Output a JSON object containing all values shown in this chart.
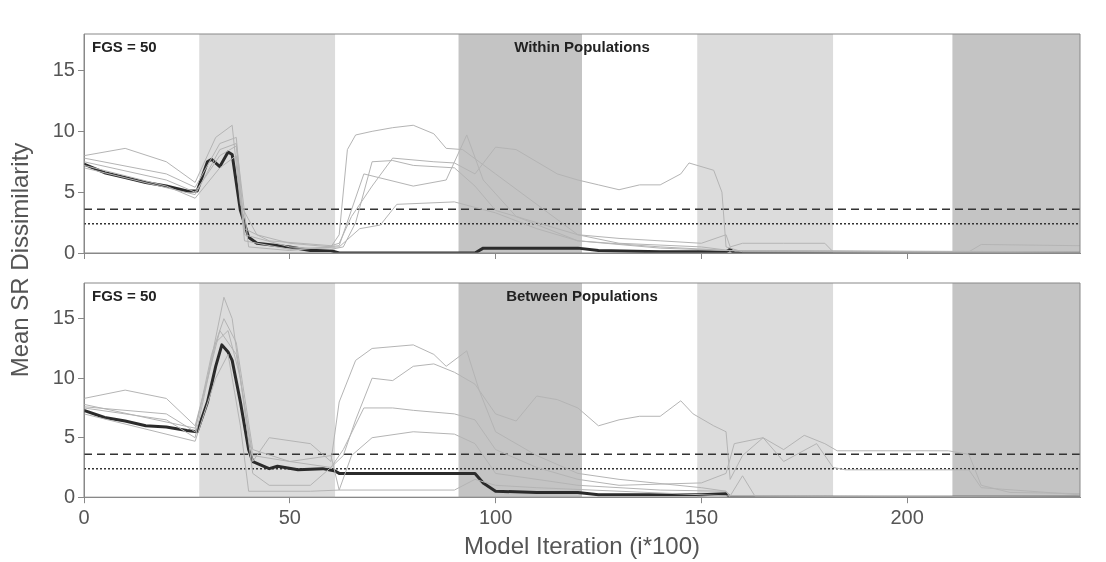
{
  "chart_data": [
    {
      "type": "line",
      "ylabel": "Mean SR Dissimilarity",
      "annotations": [
        "FGS = 50",
        "Within Populations"
      ],
      "xlim": [
        0,
        242
      ],
      "xticks": [
        0,
        50,
        100,
        150,
        200
      ],
      "ylim": [
        0,
        18
      ],
      "yticks": [
        0,
        5,
        10,
        15
      ],
      "tick_labels": "y",
      "grid": false,
      "legend": false,
      "marker": "none",
      "line_style": "solid",
      "bands": [
        {
          "axis": "x",
          "from": 28,
          "to": 61,
          "color": "#dcdcdc"
        },
        {
          "axis": "x",
          "from": 91,
          "to": 121,
          "color": "#c4c4c4"
        },
        {
          "axis": "x",
          "from": 149,
          "to": 182,
          "color": "#dcdcdc"
        },
        {
          "axis": "x",
          "from": 211,
          "to": 242,
          "color": "#c4c4c4"
        }
      ],
      "ref_lines": [
        {
          "axis": "y",
          "value": 3.6,
          "color": "#333333",
          "line_style": "dashed"
        },
        {
          "axis": "y",
          "value": 2.4,
          "color": "#333333",
          "line_style": "dotted"
        }
      ],
      "series": [
        {
          "color": "#b4b4b4",
          "x": [
            0,
            10,
            20,
            27,
            32,
            36,
            38,
            42,
            50,
            60,
            62,
            64,
            66,
            70,
            75,
            80,
            85,
            88,
            92,
            100,
            110,
            120,
            130,
            150,
            157,
            242
          ],
          "values": [
            8.0,
            8.6,
            7.5,
            5.8,
            9.5,
            10.5,
            4,
            1.5,
            0.8,
            0.5,
            1.5,
            8.5,
            9.7,
            10,
            10.3,
            10.5,
            9.8,
            8.6,
            8.5,
            6.5,
            4,
            1.5,
            0.8,
            0.5,
            0.2,
            0.1
          ]
        },
        {
          "color": "#b4b4b4",
          "x": [
            0,
            20,
            27,
            33,
            37,
            39,
            45,
            60,
            62,
            65,
            70,
            75,
            85,
            90,
            95,
            100,
            105,
            110,
            115,
            120,
            125,
            130,
            135,
            140,
            145,
            147,
            153,
            155,
            156,
            160,
            242
          ],
          "values": [
            7.8,
            6.5,
            5.4,
            9,
            9.5,
            2,
            1.0,
            0.6,
            0.8,
            3,
            5.5,
            7.8,
            7.5,
            7.4,
            6.5,
            8.7,
            8.5,
            7.5,
            6.5,
            6.0,
            5.6,
            5.2,
            5.6,
            5.6,
            6.5,
            7.4,
            6.8,
            5.0,
            0.5,
            0.1,
            0
          ]
        },
        {
          "color": "#b4b4b4",
          "x": [
            0,
            20,
            27,
            33,
            37,
            39,
            50,
            60,
            63,
            66,
            70,
            75,
            80,
            90,
            95,
            100,
            110,
            120,
            130,
            140,
            150,
            156,
            157,
            160,
            170,
            180,
            182,
            242
          ],
          "values": [
            7.5,
            6.0,
            5.0,
            8,
            8.8,
            1.5,
            0.5,
            0.3,
            0.5,
            2.5,
            7.5,
            7.6,
            7.2,
            7.0,
            5.5,
            3.5,
            2.5,
            1.5,
            1.2,
            1.0,
            0.8,
            1.5,
            0.5,
            0.8,
            0.8,
            0.8,
            0.1,
            0.1
          ]
        },
        {
          "color": "#b4b4b4",
          "x": [
            0,
            20,
            27,
            33,
            37,
            39,
            50,
            62,
            67,
            72,
            76,
            90,
            100,
            110,
            120,
            140,
            156,
            242
          ],
          "values": [
            7.2,
            5.5,
            4.5,
            7,
            8,
            1,
            0.3,
            0.5,
            2,
            2.3,
            4,
            4.2,
            3.3,
            2,
            1.0,
            0.4,
            0.2,
            0.0
          ]
        },
        {
          "color": "#b4b4b4",
          "x": [
            0,
            27,
            33,
            37,
            40,
            50,
            62,
            68,
            80,
            88,
            93,
            97,
            105,
            120,
            140,
            157,
            215,
            218,
            242
          ],
          "values": [
            7.0,
            4.8,
            8.5,
            9,
            0.5,
            0.2,
            0.6,
            6.5,
            5.5,
            6,
            9.7,
            6,
            3,
            1,
            0.5,
            0.2,
            0.1,
            0.7,
            0.6
          ]
        },
        {
          "color": "#2b2b2b",
          "x": [
            0,
            5,
            10,
            15,
            20,
            25,
            27.5,
            30,
            31,
            33,
            35,
            36,
            38,
            40,
            42,
            50,
            55,
            60,
            62,
            90,
            95,
            97,
            120,
            125,
            140,
            156,
            157,
            158,
            242
          ],
          "values": [
            7.3,
            6.6,
            6.2,
            5.8,
            5.5,
            5.1,
            5.1,
            7.5,
            7.7,
            7.1,
            8.3,
            8.1,
            3.5,
            1.3,
            0.8,
            0.5,
            0.2,
            0.2,
            0.0,
            0.0,
            0.0,
            0.4,
            0.4,
            0.2,
            0.1,
            0.1,
            0.3,
            0.0,
            0.0
          ]
        }
      ]
    },
    {
      "type": "line",
      "xlabel": "Model Iteration (i*100)",
      "annotations": [
        "FGS = 50",
        "Between Populations"
      ],
      "xlim": [
        0,
        242
      ],
      "xticks": [
        0,
        50,
        100,
        150,
        200
      ],
      "ylim": [
        0,
        18
      ],
      "yticks": [
        0,
        5,
        10,
        15
      ],
      "grid": false,
      "legend": false,
      "marker": "none",
      "line_style": "solid",
      "bands": [
        {
          "axis": "x",
          "from": 28,
          "to": 61,
          "color": "#dcdcdc"
        },
        {
          "axis": "x",
          "from": 91,
          "to": 121,
          "color": "#c4c4c4"
        },
        {
          "axis": "x",
          "from": 149,
          "to": 182,
          "color": "#dcdcdc"
        },
        {
          "axis": "x",
          "from": 211,
          "to": 242,
          "color": "#c4c4c4"
        }
      ],
      "ref_lines": [
        {
          "axis": "y",
          "value": 3.6,
          "color": "#333333",
          "line_style": "dashed"
        },
        {
          "axis": "y",
          "value": 2.4,
          "color": "#333333",
          "line_style": "dotted"
        }
      ],
      "series": [
        {
          "color": "#b4b4b4",
          "x": [
            0,
            10,
            20,
            27,
            30,
            34,
            36,
            38,
            41,
            45,
            55,
            60,
            62,
            66,
            70,
            80,
            85,
            88,
            93,
            96,
            100,
            110,
            120,
            130,
            150,
            156,
            157,
            242
          ],
          "values": [
            8.3,
            9.0,
            8.3,
            6,
            10,
            16.8,
            15,
            10,
            3,
            5,
            4.5,
            3,
            8,
            11.5,
            12.5,
            12.8,
            12,
            11,
            12.3,
            9,
            5.5,
            3.5,
            2.0,
            1.5,
            0.8,
            0.5,
            0.0,
            0.0
          ]
        },
        {
          "color": "#b4b4b4",
          "x": [
            0,
            20,
            27,
            31,
            34,
            37,
            41,
            50,
            60,
            63,
            66,
            70,
            75,
            80,
            85,
            90,
            95,
            100,
            105,
            110,
            115,
            120,
            125,
            130,
            135,
            140,
            145,
            148,
            153,
            156,
            157,
            160,
            165,
            170,
            175,
            180,
            183,
            210,
            215,
            218,
            225,
            242
          ],
          "values": [
            7.6,
            7,
            5.5,
            12,
            15,
            13,
            4,
            3,
            2.5,
            3.5,
            6.5,
            10,
            9.8,
            11,
            11.2,
            10.5,
            9.5,
            7,
            6.4,
            8.5,
            8.2,
            7.5,
            6.0,
            6.5,
            6.8,
            6.8,
            8.1,
            7.0,
            6.0,
            5.5,
            1.5,
            3.5,
            5.0,
            4.0,
            5.2,
            4.5,
            3.9,
            3.9,
            3.6,
            1.0,
            0.4,
            0.3
          ]
        },
        {
          "color": "#b4b4b4",
          "x": [
            0,
            20,
            27,
            32,
            35,
            38,
            41,
            45,
            55,
            60,
            63,
            68,
            75,
            80,
            90,
            95,
            100,
            110,
            120,
            130,
            150,
            156,
            158,
            165,
            170,
            178,
            182,
            185,
            210,
            215,
            218,
            242
          ],
          "values": [
            7.5,
            6.5,
            5.0,
            13,
            14,
            10,
            2,
            1,
            1,
            2.5,
            4,
            7.5,
            7.5,
            7.3,
            7.0,
            6.5,
            4,
            2.5,
            1.5,
            1.0,
            1.2,
            2.0,
            4.5,
            5,
            3,
            4.5,
            2.5,
            2.3,
            2.3,
            2.3,
            0.8,
            0.2
          ]
        },
        {
          "color": "#b4b4b4",
          "x": [
            0,
            27,
            32,
            35,
            38,
            40,
            55,
            62,
            65,
            70,
            80,
            90,
            95,
            100,
            120,
            140,
            156,
            157,
            242
          ],
          "values": [
            7.0,
            4.7,
            10,
            12,
            6,
            0.5,
            0.5,
            0.6,
            3.5,
            5,
            5.5,
            5.3,
            4.5,
            2,
            1,
            0.6,
            0.5,
            0.1,
            0
          ]
        },
        {
          "color": "#b4b4b4",
          "x": [
            0,
            27,
            33,
            37,
            41,
            50,
            60,
            62,
            90,
            95,
            100,
            110,
            157,
            160,
            163,
            242
          ],
          "values": [
            7.8,
            5.8,
            14,
            12,
            3.5,
            3,
            3.5,
            0.6,
            0.6,
            1.5,
            1.0,
            0.8,
            0.1,
            1.8,
            0.1,
            0
          ]
        },
        {
          "color": "#2b2b2b",
          "x": [
            0,
            5,
            10,
            15,
            20,
            25,
            27.5,
            30,
            32,
            33.5,
            35,
            36,
            38,
            40,
            41,
            45,
            47,
            52,
            58,
            61,
            62,
            95,
            97,
            100,
            110,
            120,
            125,
            150,
            156,
            157,
            242
          ],
          "values": [
            7.3,
            6.7,
            6.4,
            6.0,
            5.9,
            5.6,
            5.5,
            8,
            11,
            12.8,
            12.2,
            11.5,
            8,
            4,
            3,
            2.4,
            2.6,
            2.3,
            2.4,
            2.2,
            2.0,
            2.0,
            1.2,
            0.5,
            0.4,
            0.4,
            0.2,
            0.2,
            0.3,
            0.0,
            0
          ]
        }
      ]
    }
  ]
}
